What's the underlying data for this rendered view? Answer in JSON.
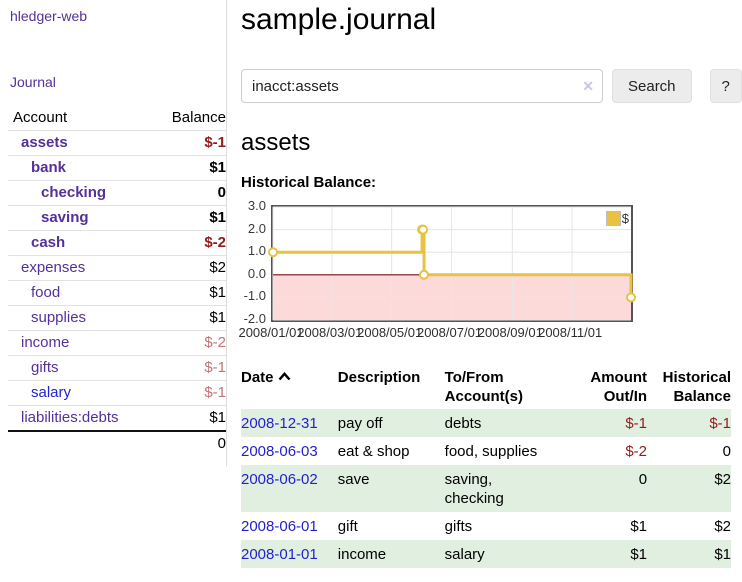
{
  "colors": {
    "purple": "#55309b",
    "blue": "#2323d4",
    "linkblue": "#2222cc",
    "darkred": "#941b1b",
    "rose": "#c17676",
    "rowgreen": "#e1efe1",
    "gold": "#e8c240",
    "zero": "#7a1212",
    "pink": "#fcdada",
    "grid": "#e6e6e6",
    "chartborder": "#545454",
    "btnbg": "#ececec"
  },
  "sidebar": {
    "app_title": "hledger-web",
    "nav_journal": "Journal",
    "accounts_table": {
      "col_account": "Account",
      "col_balance": "Balance",
      "rows": [
        {
          "name": "assets",
          "balance": "$-1"
        },
        {
          "name": "bank",
          "balance": "$1"
        },
        {
          "name": "checking",
          "balance": "0"
        },
        {
          "name": "saving",
          "balance": "$1"
        },
        {
          "name": "cash",
          "balance": "$-2"
        },
        {
          "name": "expenses",
          "balance": "$2"
        },
        {
          "name": "food",
          "balance": "$1"
        },
        {
          "name": "supplies",
          "balance": "$1"
        },
        {
          "name": "income",
          "balance": "$-2"
        },
        {
          "name": "gifts",
          "balance": "$-1"
        },
        {
          "name": "salary",
          "balance": "$-1"
        },
        {
          "name": "liabilities:debts",
          "balance": "$1"
        }
      ],
      "total": "0"
    }
  },
  "main": {
    "title": "sample.journal",
    "search": {
      "query": "inacct:assets",
      "clear_icon": "✕",
      "search_button": "Search",
      "help_button": "?"
    },
    "account_heading": "assets",
    "chart_label": "Historical Balance:",
    "transactions": {
      "headers": {
        "date": "Date",
        "description": "Description",
        "tofrom": "To/From\nAccount(s)",
        "amount": "Amount\nOut/In",
        "balance": "Historical\nBalance"
      },
      "rows": [
        {
          "date": "2008-12-31",
          "description": "pay off",
          "tofrom": "debts",
          "amount": "$-1",
          "balance": "$-1"
        },
        {
          "date": "2008-06-03",
          "description": "eat & shop",
          "tofrom": "food, supplies",
          "amount": "$-2",
          "balance": "0"
        },
        {
          "date": "2008-06-02",
          "description": "save",
          "tofrom": "saving,\nchecking",
          "amount": "0",
          "balance": "$2"
        },
        {
          "date": "2008-06-01",
          "description": "gift",
          "tofrom": "gifts",
          "amount": "$1",
          "balance": "$2"
        },
        {
          "date": "2008-01-01",
          "description": "income",
          "tofrom": "salary",
          "amount": "$1",
          "balance": "$1"
        }
      ]
    }
  },
  "chart_data": {
    "type": "line",
    "title": "Historical Balance",
    "step": true,
    "series": [
      {
        "name": "$",
        "points": [
          [
            "2008-01-01",
            1
          ],
          [
            "2008-06-01",
            2
          ],
          [
            "2008-06-02",
            2
          ],
          [
            "2008-06-03",
            0
          ],
          [
            "2008-12-31",
            -1
          ]
        ]
      }
    ],
    "x_range": [
      "2008-01-01",
      "2008-12-31"
    ],
    "ylim": [
      -2,
      3
    ],
    "yticks": [
      3.0,
      2.0,
      1.0,
      0.0,
      -1.0,
      -2.0
    ],
    "xticks": [
      {
        "label": "2008/01/01",
        "date": "2008-01-01"
      },
      {
        "label": "2008/03/01",
        "date": "2008-03-01"
      },
      {
        "label": "2008/05/01",
        "date": "2008-05-01"
      },
      {
        "label": "2008/07/01",
        "date": "2008-07-01"
      },
      {
        "label": "2008/09/01",
        "date": "2008-09-01"
      },
      {
        "label": "2008/11/01",
        "date": "2008-11-01"
      }
    ],
    "legend": {
      "position": "top-right",
      "label": "$"
    },
    "grid": true,
    "negative_region_shaded": true,
    "zero_line": true
  }
}
